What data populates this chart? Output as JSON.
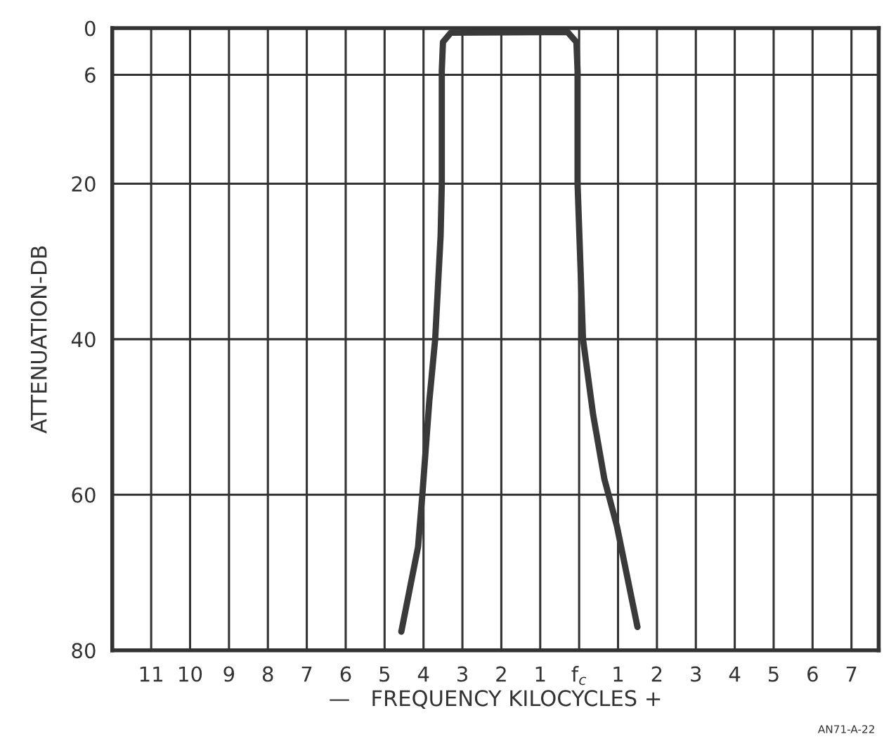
{
  "chart_data": {
    "type": "line",
    "xlabel": "—   FREQUENCY KILOCYCLES +",
    "ylabel": "ATTENUATION-DB",
    "annotations": [
      "AN71-A-22"
    ],
    "series": [
      {
        "color": "#3a3a3a",
        "x": [
          -4.57,
          -4.14,
          -4.03,
          -3.85,
          -3.7,
          -3.56,
          -3.53,
          -3.53,
          -3.5,
          -3.3,
          -0.3,
          -0.07,
          -0.04,
          -0.04,
          0.1,
          0.36,
          0.65,
          0.97,
          1.5
        ],
        "values": [
          77.6,
          66.7,
          60,
          47.9,
          40,
          26.7,
          20,
          5.5,
          1.8,
          0.6,
          0.5,
          1.8,
          5.5,
          20,
          40,
          49.7,
          58,
          64,
          77
        ]
      }
    ],
    "xlim": [
      -12,
      7.7
    ],
    "ylim": [
      80,
      0
    ],
    "xticks": [
      {
        "value": -11,
        "label": "11"
      },
      {
        "value": -10,
        "label": "10"
      },
      {
        "value": -9,
        "label": "9"
      },
      {
        "value": -8,
        "label": "8"
      },
      {
        "value": -7,
        "label": "7"
      },
      {
        "value": -6,
        "label": "6"
      },
      {
        "value": -5,
        "label": "5"
      },
      {
        "value": -4,
        "label": "4"
      },
      {
        "value": -3,
        "label": "3"
      },
      {
        "value": -2,
        "label": "2"
      },
      {
        "value": -1,
        "label": "1"
      },
      {
        "value": 0,
        "label": "f$_{c}$"
      },
      1,
      2,
      3,
      4,
      5,
      6,
      7
    ],
    "yticks": [
      0,
      6,
      20,
      40,
      60,
      80
    ],
    "grid": true,
    "marker": "none",
    "line_style": "solid",
    "legend": false
  }
}
